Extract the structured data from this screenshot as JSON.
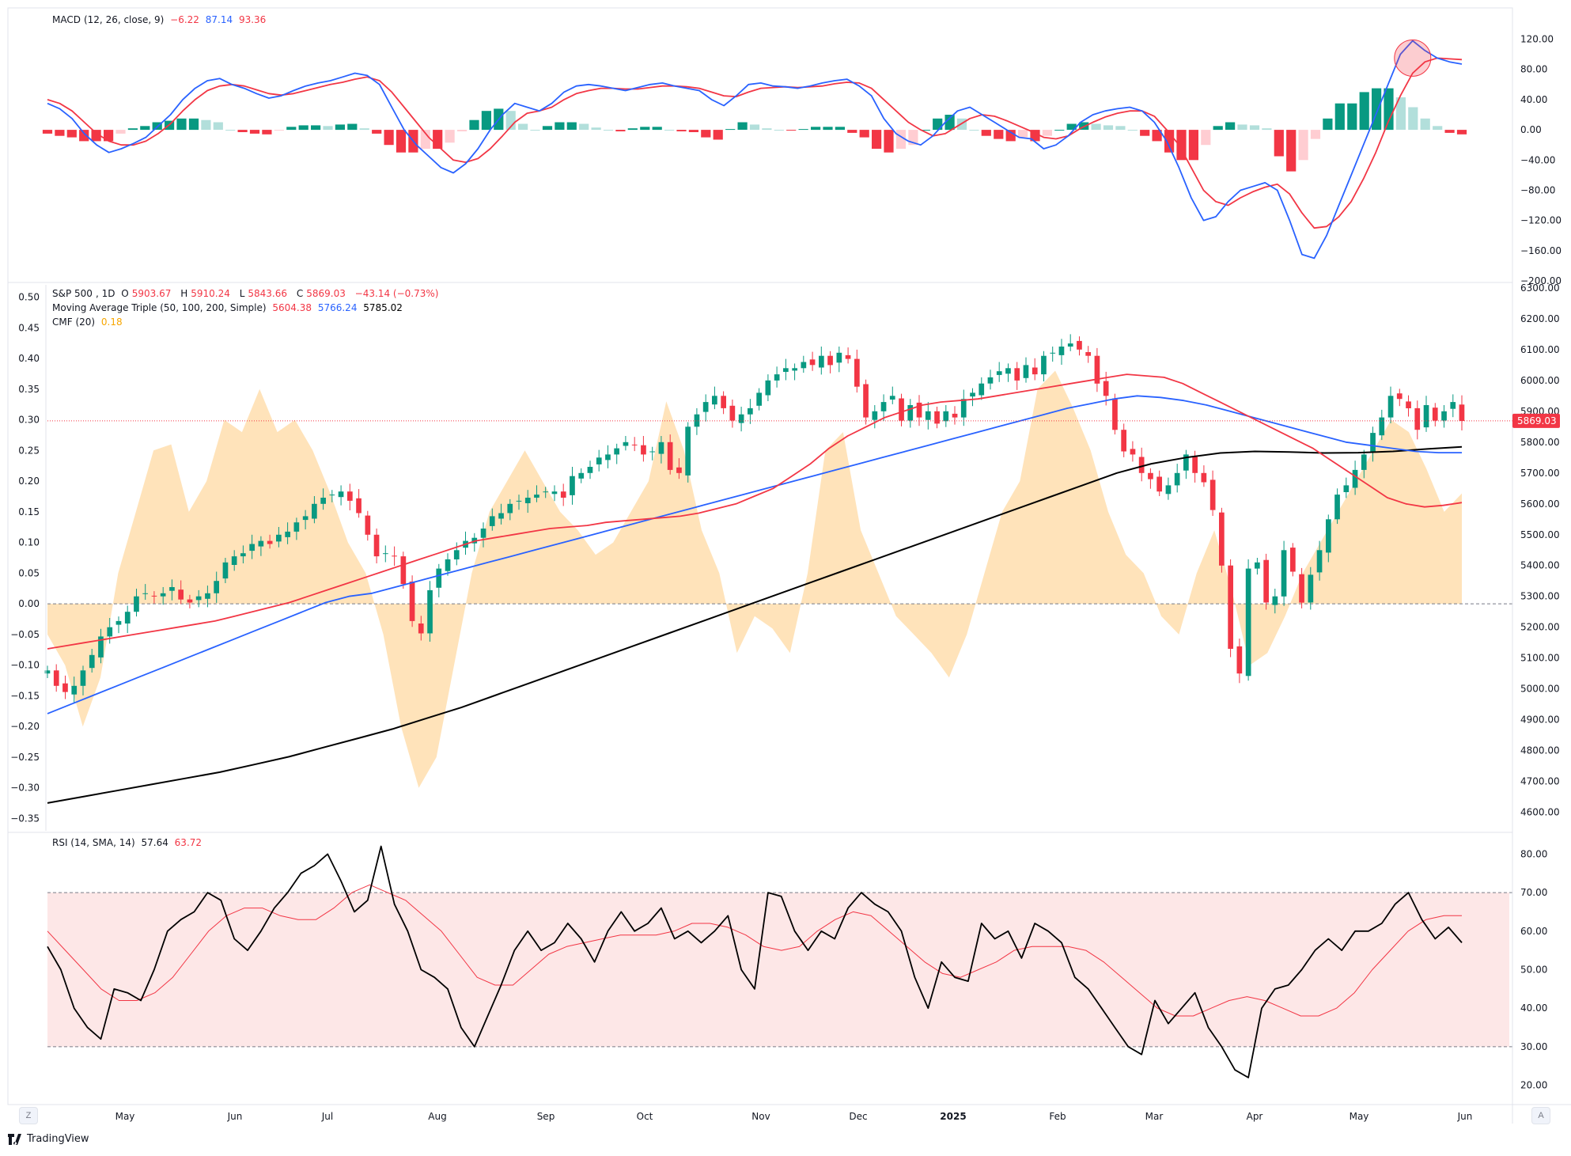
{
  "macd": {
    "label": "MACD",
    "params": "(12, 26, close, 9)",
    "hist": "−6.22",
    "macd": "87.14",
    "signal": "93.36",
    "ticks": [
      "120.00",
      "80.00",
      "40.00",
      "0.00",
      "−40.00",
      "−80.00",
      "−120.00",
      "−160.00",
      "−200.00"
    ],
    "colors": {
      "macd": "#2962ff",
      "signal": "#f23645",
      "hist_up_strong": "#089981",
      "hist_up_weak": "#b2dfdb",
      "hist_down_strong": "#f23645",
      "hist_down_weak": "#ffcdd2"
    }
  },
  "price": {
    "symbol": "S&P 500",
    "interval": "1D",
    "o_label": "O",
    "o": "5903.67",
    "h_label": "H",
    "h": "5910.24",
    "l_label": "L",
    "l": "5843.66",
    "c_label": "C",
    "c": "5869.03",
    "change": "−43.14 (−0.73%)",
    "ma_label": "Moving Average Triple (50, 100, 200, Simple)",
    "ma50": "5604.38",
    "ma100": "5766.24",
    "ma200": "5785.02",
    "cmf_label": "CMF (20)",
    "cmf": "0.18",
    "last_price_tag": "5869.03",
    "right_ticks": [
      "6300.00",
      "6200.00",
      "6100.00",
      "6000.00",
      "5900.00",
      "5800.00",
      "5700.00",
      "5600.00",
      "5500.00",
      "5400.00",
      "5300.00",
      "5200.00",
      "5100.00",
      "5000.00",
      "4900.00",
      "4800.00",
      "4700.00",
      "4600.00"
    ],
    "left_ticks": [
      "0.50",
      "0.45",
      "0.40",
      "0.35",
      "0.30",
      "0.25",
      "0.20",
      "0.15",
      "0.10",
      "0.05",
      "0.00",
      "−0.05",
      "−0.10",
      "−0.15",
      "−0.20",
      "−0.25",
      "−0.30",
      "−0.35"
    ],
    "colors": {
      "up": "#089981",
      "down": "#f23645",
      "ma50": "#f23645",
      "ma100": "#2962ff",
      "ma200": "#000000",
      "cmf_fill": "#ffe0b2"
    }
  },
  "rsi": {
    "label": "RSI (14, SMA, 14)",
    "value": "57.64",
    "sma": "63.72",
    "ticks": [
      "80.00",
      "70.00",
      "60.00",
      "50.00",
      "40.00",
      "30.00",
      "20.00"
    ],
    "colors": {
      "rsi": "#000000",
      "sma": "#f23645",
      "band": "#fde7e7"
    }
  },
  "time_axis": [
    "May",
    "Jun",
    "Jul",
    "Aug",
    "Sep",
    "Oct",
    "Nov",
    "Dec",
    "2025",
    "Feb",
    "Mar",
    "Apr",
    "May",
    "Jun"
  ],
  "corner": {
    "left": "Z",
    "right": "A"
  },
  "branding": "TradingView",
  "chart_data": [
    {
      "type": "line",
      "title": "MACD (12, 26, close, 9)",
      "x_range": [
        "2024-04-15",
        "2025-05-30"
      ],
      "ylim": [
        -200,
        130
      ],
      "series": [
        {
          "name": "MACD",
          "values": [
            35,
            28,
            15,
            -5,
            -20,
            -30,
            -25,
            -18,
            -10,
            5,
            20,
            40,
            55,
            65,
            68,
            60,
            55,
            48,
            42,
            45,
            52,
            58,
            62,
            65,
            70,
            75,
            72,
            60,
            30,
            0,
            -20,
            -35,
            -50,
            -57,
            -45,
            -25,
            0,
            20,
            35,
            30,
            25,
            35,
            50,
            58,
            60,
            58,
            55,
            52,
            56,
            60,
            62,
            58,
            55,
            52,
            40,
            32,
            45,
            60,
            62,
            58,
            57,
            55,
            58,
            62,
            65,
            67,
            58,
            45,
            15,
            -5,
            -15,
            -20,
            -8,
            10,
            25,
            30,
            20,
            10,
            0,
            -10,
            -12,
            -25,
            -20,
            -8,
            10,
            20,
            25,
            28,
            30,
            25,
            10,
            -15,
            -50,
            -90,
            -120,
            -115,
            -95,
            -80,
            -75,
            -70,
            -80,
            -120,
            -165,
            -170,
            -140,
            -100,
            -60,
            -20,
            20,
            60,
            100,
            118,
            105,
            95,
            90,
            87
          ]
        },
        {
          "name": "Signal",
          "values": [
            40,
            35,
            25,
            10,
            -5,
            -15,
            -20,
            -20,
            -15,
            -5,
            8,
            25,
            40,
            52,
            58,
            60,
            58,
            53,
            48,
            46,
            48,
            52,
            56,
            60,
            63,
            67,
            70,
            65,
            50,
            30,
            10,
            -10,
            -25,
            -40,
            -43,
            -38,
            -25,
            -8,
            10,
            22,
            25,
            30,
            40,
            48,
            52,
            55,
            55,
            54,
            54,
            56,
            58,
            58,
            57,
            55,
            50,
            45,
            44,
            50,
            55,
            56,
            57,
            56,
            57,
            58,
            61,
            63,
            62,
            55,
            40,
            25,
            10,
            0,
            -8,
            -5,
            5,
            15,
            20,
            18,
            12,
            5,
            -2,
            -10,
            -12,
            -8,
            2,
            10,
            17,
            22,
            25,
            25,
            18,
            0,
            -20,
            -50,
            -80,
            -95,
            -100,
            -90,
            -82,
            -76,
            -72,
            -85,
            -110,
            -130,
            -128,
            -115,
            -95,
            -65,
            -30,
            10,
            45,
            75,
            90,
            95,
            94,
            93
          ]
        }
      ],
      "histogram_values": [
        -5,
        -8,
        -10,
        -15,
        -15,
        -15,
        -5,
        2,
        5,
        10,
        12,
        15,
        15,
        13,
        10,
        0,
        -3,
        -5,
        -6,
        -1,
        4,
        6,
        6,
        5,
        7,
        8,
        2,
        -5,
        -20,
        -30,
        -30,
        -25,
        -25,
        -17,
        -2,
        13,
        25,
        28,
        25,
        8,
        0,
        5,
        10,
        10,
        8,
        3,
        0,
        -2,
        2,
        4,
        4,
        0,
        -2,
        -3,
        -10,
        -13,
        1,
        10,
        7,
        2,
        0,
        -1,
        1,
        4,
        4,
        4,
        -4,
        -10,
        -25,
        -30,
        -25,
        -20,
        0,
        15,
        20,
        15,
        0,
        -8,
        -12,
        -15,
        -10,
        -15,
        -8,
        0,
        8,
        10,
        8,
        6,
        5,
        0,
        -8,
        -15,
        -30,
        -40,
        -40,
        -20,
        5,
        10,
        7,
        6,
        2,
        -35,
        -55,
        -40,
        -12,
        15,
        35,
        35,
        50,
        55,
        55,
        43,
        30,
        15,
        5,
        -4,
        -6
      ]
    },
    {
      "type": "candlestick",
      "title": "S&P 500, 1D",
      "x_range": [
        "2024-04-15",
        "2025-05-30"
      ],
      "ylim": [
        4540,
        6310
      ],
      "y2lim": [
        -0.37,
        0.52
      ],
      "close_values": [
        5060,
        5010,
        4990,
        5010,
        5060,
        5110,
        5170,
        5200,
        5220,
        5250,
        5300,
        5310,
        5300,
        5310,
        5330,
        5290,
        5280,
        5300,
        5310,
        5350,
        5410,
        5430,
        5440,
        5470,
        5480,
        5470,
        5500,
        5510,
        5540,
        5560,
        5600,
        5620,
        5630,
        5640,
        5610,
        5570,
        5500,
        5430,
        5440,
        5430,
        5340,
        5220,
        5180,
        5320,
        5390,
        5420,
        5450,
        5480,
        5490,
        5520,
        5560,
        5570,
        5600,
        5610,
        5620,
        5630,
        5640,
        5640,
        5620,
        5690,
        5700,
        5720,
        5750,
        5760,
        5780,
        5800,
        5790,
        5760,
        5770,
        5800,
        5710,
        5700,
        5850,
        5890,
        5930,
        5950,
        5910,
        5870,
        5890,
        5910,
        5960,
        6000,
        6020,
        6040,
        6040,
        6060,
        6050,
        6080,
        6050,
        6090,
        6070,
        5980,
        5880,
        5900,
        5930,
        5950,
        5870,
        5920,
        5880,
        5900,
        5860,
        5900,
        5880,
        5940,
        5960,
        5990,
        6010,
        6030,
        6040,
        6000,
        6050,
        6020,
        6080,
        6090,
        6110,
        6120,
        6100,
        6080,
        5990,
        5950,
        5840,
        5770,
        5760,
        5700,
        5680,
        5640,
        5660,
        5700,
        5760,
        5700,
        5670,
        5580,
        5400,
        5130,
        5050,
        5390,
        5410,
        5280,
        5300,
        5450,
        5380,
        5280,
        5370,
        5450,
        5550,
        5630,
        5660,
        5710,
        5760,
        5830,
        5880,
        5950,
        5940,
        5910,
        5840,
        5920,
        5870,
        5900,
        5930,
        5869
      ],
      "series": [
        {
          "name": "MA 50",
          "values": [
            5130,
            5140,
            5150,
            5160,
            5170,
            5180,
            5190,
            5200,
            5210,
            5220,
            5235,
            5250,
            5265,
            5280,
            5300,
            5320,
            5340,
            5360,
            5380,
            5400,
            5420,
            5440,
            5460,
            5480,
            5490,
            5500,
            5510,
            5520,
            5525,
            5530,
            5540,
            5545,
            5550,
            5555,
            5560,
            5570,
            5585,
            5600,
            5625,
            5650,
            5690,
            5730,
            5780,
            5820,
            5850,
            5880,
            5900,
            5920,
            5930,
            5935,
            5940,
            5950,
            5960,
            5970,
            5980,
            5990,
            6000,
            6010,
            6020,
            6015,
            6010,
            5990,
            5960,
            5930,
            5900,
            5870,
            5840,
            5810,
            5780,
            5740,
            5700,
            5660,
            5620,
            5600,
            5590,
            5595,
            5604
          ]
        },
        {
          "name": "MA 100",
          "values": [
            4920,
            4950,
            4980,
            5010,
            5040,
            5070,
            5100,
            5130,
            5160,
            5190,
            5220,
            5250,
            5280,
            5300,
            5310,
            5330,
            5350,
            5370,
            5390,
            5410,
            5430,
            5450,
            5470,
            5490,
            5510,
            5530,
            5550,
            5570,
            5590,
            5610,
            5630,
            5650,
            5670,
            5690,
            5710,
            5730,
            5750,
            5770,
            5790,
            5810,
            5830,
            5850,
            5870,
            5890,
            5910,
            5925,
            5940,
            5950,
            5945,
            5935,
            5920,
            5900,
            5880,
            5860,
            5840,
            5820,
            5800,
            5790,
            5780,
            5770,
            5766,
            5766
          ]
        },
        {
          "name": "MA 200",
          "values": [
            4630,
            4650,
            4670,
            4690,
            4710,
            4730,
            4755,
            4780,
            4810,
            4840,
            4870,
            4905,
            4940,
            4980,
            5020,
            5060,
            5100,
            5140,
            5180,
            5220,
            5260,
            5300,
            5340,
            5380,
            5420,
            5460,
            5500,
            5540,
            5580,
            5620,
            5660,
            5700,
            5730,
            5750,
            5765,
            5770,
            5768,
            5765,
            5766,
            5770,
            5778,
            5785
          ]
        },
        {
          "name": "CMF (20)",
          "values": [
            -0.05,
            -0.1,
            -0.2,
            -0.12,
            0.05,
            0.15,
            0.25,
            0.26,
            0.15,
            0.2,
            0.3,
            0.28,
            0.35,
            0.28,
            0.3,
            0.25,
            0.18,
            0.1,
            0.05,
            -0.05,
            -0.2,
            -0.3,
            -0.25,
            -0.1,
            0.05,
            0.15,
            0.2,
            0.25,
            0.2,
            0.15,
            0.12,
            0.08,
            0.1,
            0.15,
            0.2,
            0.33,
            0.25,
            0.12,
            0.05,
            -0.08,
            -0.02,
            -0.04,
            -0.08,
            0.05,
            0.25,
            0.28,
            0.12,
            0.05,
            -0.02,
            -0.05,
            -0.08,
            -0.12,
            -0.05,
            0.05,
            0.15,
            0.2,
            0.35,
            0.38,
            0.32,
            0.25,
            0.15,
            0.08,
            0.05,
            -0.02,
            -0.05,
            0.05,
            0.12,
            0.02,
            -0.1,
            -0.08,
            -0.02,
            0.05,
            0.1,
            0.15,
            0.2,
            0.25,
            0.3,
            0.28,
            0.22,
            0.15,
            0.18
          ]
        }
      ]
    },
    {
      "type": "line",
      "title": "RSI (14, SMA, 14)",
      "x_range": [
        "2024-04-15",
        "2025-05-30"
      ],
      "ylim": [
        15,
        85
      ],
      "series": [
        {
          "name": "RSI",
          "values": [
            56,
            50,
            40,
            35,
            32,
            45,
            44,
            42,
            50,
            60,
            63,
            65,
            70,
            68,
            58,
            55,
            60,
            66,
            70,
            75,
            77,
            80,
            73,
            65,
            68,
            82,
            67,
            60,
            50,
            48,
            45,
            35,
            30,
            38,
            46,
            55,
            60,
            55,
            57,
            62,
            58,
            52,
            60,
            65,
            60,
            62,
            66,
            58,
            60,
            57,
            60,
            64,
            50,
            45,
            70,
            69,
            60,
            55,
            60,
            58,
            66,
            70,
            67,
            65,
            60,
            48,
            40,
            52,
            48,
            47,
            62,
            58,
            60,
            53,
            62,
            60,
            57,
            48,
            45,
            40,
            35,
            30,
            28,
            42,
            36,
            40,
            44,
            35,
            30,
            24,
            22,
            40,
            45,
            46,
            50,
            55,
            58,
            55,
            60,
            60,
            62,
            67,
            70,
            63,
            58,
            61,
            57
          ]
        },
        {
          "name": "SMA",
          "values": [
            60,
            55,
            50,
            45,
            42,
            42,
            44,
            48,
            54,
            60,
            64,
            66,
            66,
            64,
            63,
            63,
            66,
            70,
            72,
            70,
            68,
            64,
            60,
            54,
            48,
            46,
            46,
            50,
            54,
            56,
            57,
            58,
            59,
            59,
            59,
            60,
            62,
            62,
            61,
            59,
            56,
            55,
            56,
            60,
            63,
            65,
            64,
            60,
            56,
            52,
            49,
            48,
            50,
            52,
            55,
            56,
            56,
            56,
            55,
            52,
            48,
            44,
            40,
            38,
            38,
            40,
            42,
            43,
            42,
            40,
            38,
            38,
            40,
            44,
            50,
            55,
            60,
            63,
            64,
            64
          ]
        }
      ]
    }
  ]
}
